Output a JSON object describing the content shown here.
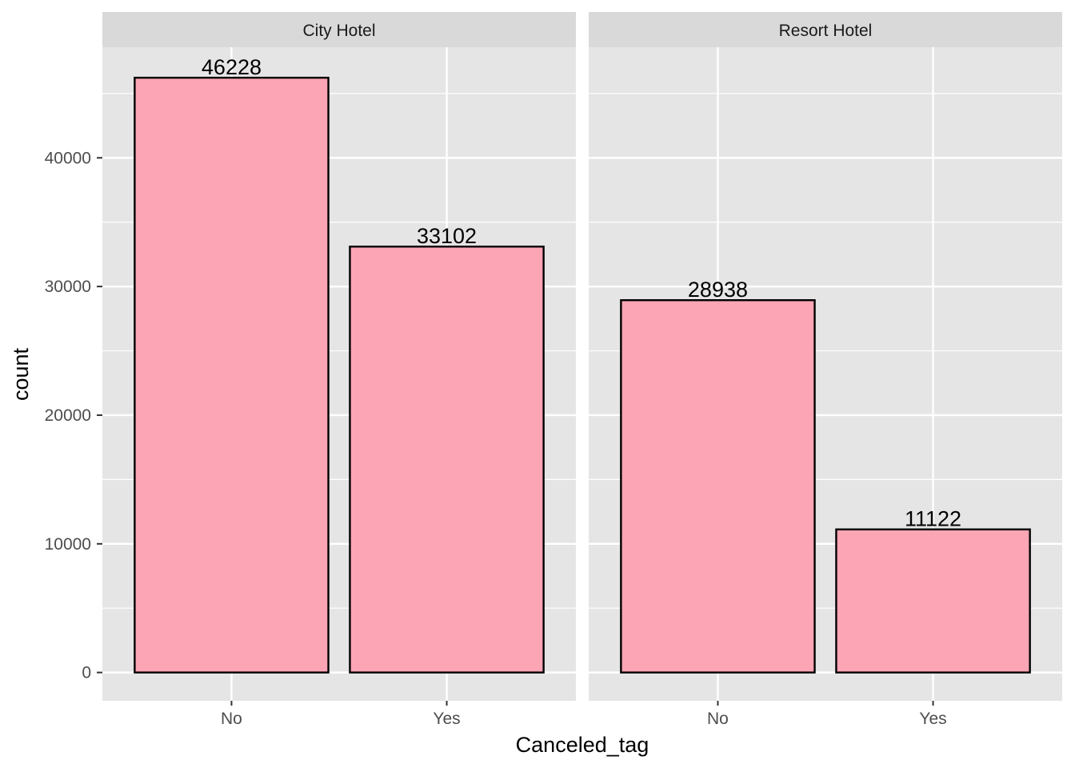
{
  "chart_data": {
    "type": "bar",
    "facet_variable": "hotel",
    "xlabel": "Canceled_tag",
    "ylabel": "count",
    "ylim": [
      -2200,
      48600
    ],
    "yticks": [
      0,
      10000,
      20000,
      30000,
      40000
    ],
    "ytick_labels": [
      "0",
      "10000",
      "20000",
      "30000",
      "40000"
    ],
    "categories": [
      "No",
      "Yes"
    ],
    "grid": true,
    "legend": "none",
    "colors": {
      "bar_fill": "#FCA5B5",
      "bar_stroke": "#000000",
      "panel_bg": "#E5E5E5",
      "strip_bg": "#D9D9D9",
      "grid": "#FFFFFF"
    },
    "panels": [
      {
        "name": "City Hotel",
        "values": [
          46228,
          33102
        ],
        "value_labels": [
          "46228",
          "33102"
        ]
      },
      {
        "name": "Resort Hotel",
        "values": [
          28938,
          11122
        ],
        "value_labels": [
          "28938",
          "11122"
        ]
      }
    ]
  }
}
